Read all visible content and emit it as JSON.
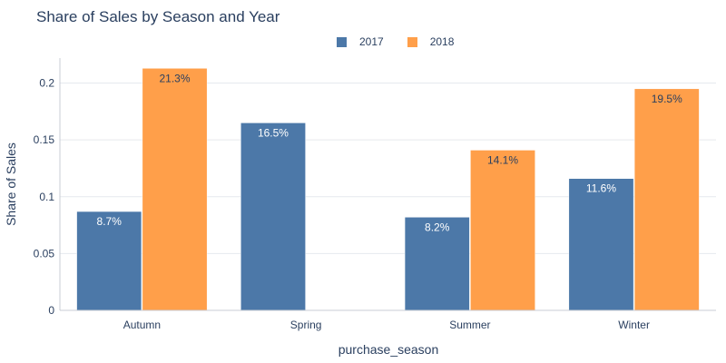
{
  "chart_data": {
    "type": "bar",
    "title": "Share of Sales by Season and Year",
    "xlabel": "purchase_season",
    "ylabel": "Share of Sales",
    "categories": [
      "Autumn",
      "Spring",
      "Summer",
      "Winter"
    ],
    "series": [
      {
        "name": "2017",
        "color": "#4c78a8",
        "values": [
          0.087,
          0.165,
          0.082,
          0.116
        ],
        "labels": [
          "8.7%",
          "16.5%",
          "8.2%",
          "11.6%"
        ]
      },
      {
        "name": "2018",
        "color": "#ff9f4a",
        "values": [
          0.213,
          null,
          0.141,
          0.195
        ],
        "labels": [
          "21.3%",
          "",
          "14.1%",
          "19.5%"
        ]
      }
    ],
    "ylim": [
      0,
      0.222
    ],
    "yticks": [
      0,
      0.05,
      0.1,
      0.15,
      0.2
    ],
    "ytick_labels": [
      "0",
      "0.05",
      "0.1",
      "0.15",
      "0.2"
    ],
    "grid": true,
    "legend_position": "top-center"
  }
}
